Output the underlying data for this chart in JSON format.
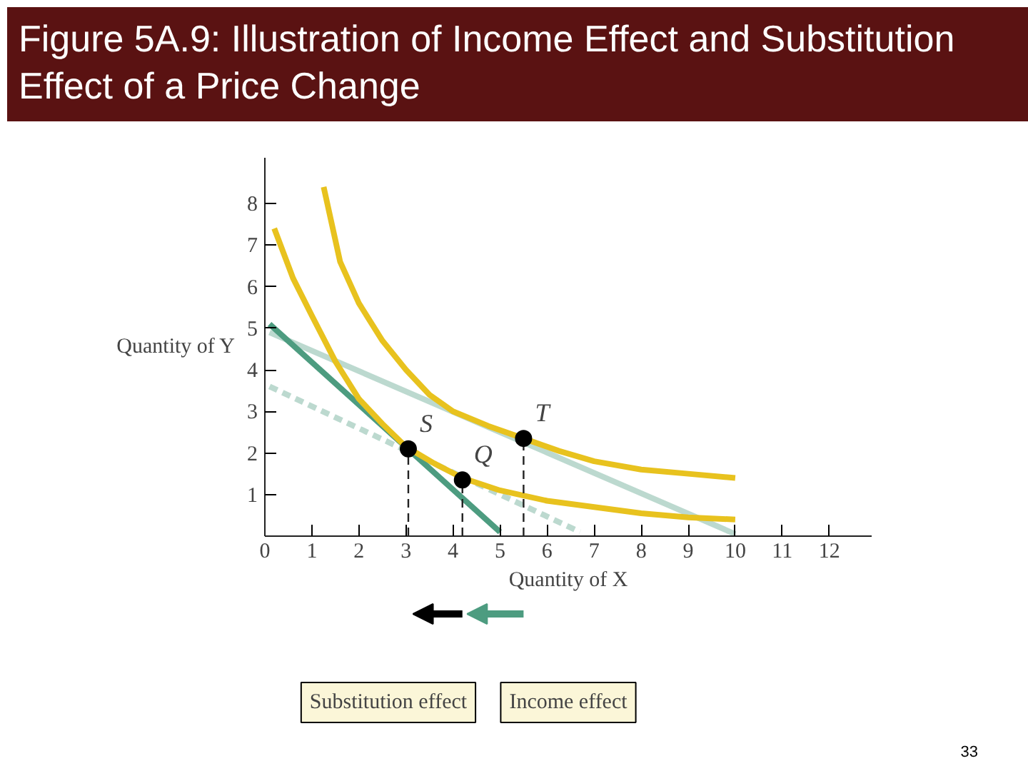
{
  "chart_data": {
    "type": "line",
    "title": "Figure 5A.9: Illustration of Income Effect and Substitution Effect of a Price Change",
    "xlabel": "Quantity of X",
    "ylabel": "Quantity of Y",
    "xlim": [
      0,
      12.9
    ],
    "ylim": [
      0,
      9.1
    ],
    "xticks": [
      0,
      1,
      2,
      3,
      4,
      5,
      6,
      7,
      8,
      9,
      10,
      11,
      12
    ],
    "yticks": [
      1,
      2,
      3,
      4,
      5,
      6,
      7,
      8
    ],
    "grid": false,
    "series": [
      {
        "color": "#bcd9cf",
        "x": [
          0.1,
          10
        ],
        "values": [
          4.9,
          0.05
        ]
      },
      {
        "color": "#bcd9cf",
        "line_style": "dashed",
        "x": [
          0.1,
          6.7
        ],
        "values": [
          3.6,
          0.1
        ]
      },
      {
        "color": "#4d9c80",
        "x": [
          0.1,
          5.0
        ],
        "values": [
          5.1,
          0.1
        ]
      },
      {
        "color": "#e8c21e",
        "x": [
          1.25,
          1.6,
          2,
          2.5,
          3,
          3.5,
          4,
          4.75,
          5.5,
          6.25,
          7,
          8,
          9,
          10
        ],
        "values": [
          8.4,
          6.6,
          5.6,
          4.7,
          4.0,
          3.4,
          3.0,
          2.65,
          2.35,
          2.05,
          1.8,
          1.6,
          1.5,
          1.4
        ]
      },
      {
        "color": "#e8c21e",
        "x": [
          0.2,
          0.6,
          1,
          1.5,
          2,
          2.5,
          3,
          3.6,
          4.2,
          5,
          6,
          7,
          8,
          9,
          10
        ],
        "values": [
          7.4,
          6.2,
          5.3,
          4.2,
          3.3,
          2.7,
          2.15,
          1.75,
          1.4,
          1.1,
          0.85,
          0.7,
          0.55,
          0.45,
          0.4
        ]
      },
      {
        "color": "#222222",
        "line_style": "dashed",
        "x": [
          3.05,
          3.05
        ],
        "values": [
          0,
          2.1
        ]
      },
      {
        "color": "#222222",
        "line_style": "dashed",
        "x": [
          4.2,
          4.2
        ],
        "values": [
          0,
          1.35
        ]
      },
      {
        "color": "#222222",
        "line_style": "dashed",
        "x": [
          5.5,
          5.5
        ],
        "values": [
          0,
          2.35
        ]
      },
      {
        "type": "scatter",
        "marker": "circle",
        "color": "#000000",
        "x": [
          3.05,
          4.2,
          5.5
        ],
        "values": [
          2.1,
          1.35,
          2.35
        ]
      }
    ],
    "annotations": [
      {
        "text": "S",
        "x": 3.05,
        "y": 2.1
      },
      {
        "text": "Q",
        "x": 4.2,
        "y": 1.35
      },
      {
        "text": "T",
        "x": 5.5,
        "y": 2.35
      },
      "Substitution effect",
      "Income effect",
      "33"
    ]
  }
}
